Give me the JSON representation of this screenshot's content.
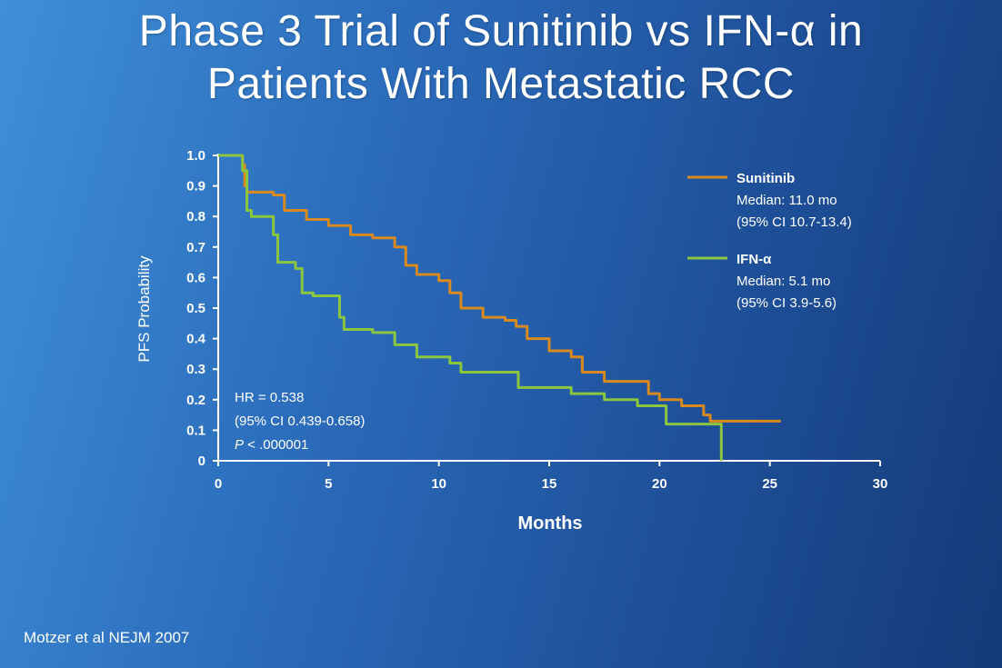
{
  "slide": {
    "title_line1": "Phase 3 Trial of Sunitinib vs IFN-α in",
    "title_line2": "Patients With Metastatic RCC",
    "footer": "Motzer et al NEJM 2007"
  },
  "colors": {
    "sunitinib": "#d98a1e",
    "ifn": "#8cc63f",
    "axis_label_blue": "#9fd0ff",
    "text": "#ffffff"
  },
  "chart_data": {
    "type": "line",
    "xlabel": "Months",
    "ylabel": "PFS Probability",
    "xlim": [
      0,
      30
    ],
    "ylim": [
      0,
      1.0
    ],
    "x_ticks": [
      0,
      5,
      10,
      15,
      20,
      25,
      30
    ],
    "y_ticks": [
      0,
      0.1,
      0.2,
      0.3,
      0.4,
      0.5,
      0.6,
      0.7,
      0.8,
      0.9,
      1.0
    ],
    "y_tick_labels": [
      "0",
      "0.1",
      "0.2",
      "0.3",
      "0.4",
      "0.5",
      "0.6",
      "0.7",
      "0.8",
      "0.9",
      "1.0"
    ],
    "grid": false,
    "legend_position": "top-right",
    "series": [
      {
        "name": "Sunitinib",
        "median": "Median: 11.0 mo",
        "ci": "(95% CI 10.7-13.4)",
        "points": [
          [
            0,
            1.0
          ],
          [
            1.0,
            1.0
          ],
          [
            1.1,
            0.97
          ],
          [
            1.2,
            0.9
          ],
          [
            1.3,
            0.88
          ],
          [
            2.5,
            0.87
          ],
          [
            3.0,
            0.82
          ],
          [
            4.0,
            0.79
          ],
          [
            5.0,
            0.77
          ],
          [
            6.0,
            0.74
          ],
          [
            7.0,
            0.73
          ],
          [
            8.0,
            0.7
          ],
          [
            8.5,
            0.64
          ],
          [
            9.0,
            0.61
          ],
          [
            10.0,
            0.59
          ],
          [
            10.5,
            0.55
          ],
          [
            11.0,
            0.5
          ],
          [
            12.0,
            0.47
          ],
          [
            13.0,
            0.46
          ],
          [
            13.5,
            0.44
          ],
          [
            14.0,
            0.4
          ],
          [
            15.0,
            0.36
          ],
          [
            16.0,
            0.34
          ],
          [
            16.5,
            0.29
          ],
          [
            17.5,
            0.26
          ],
          [
            19.5,
            0.22
          ],
          [
            20.0,
            0.2
          ],
          [
            21.0,
            0.18
          ],
          [
            22.0,
            0.15
          ],
          [
            22.3,
            0.13
          ],
          [
            25.5,
            0.13
          ]
        ]
      },
      {
        "name": "IFN-α",
        "median": "Median: 5.1 mo",
        "ci": "(95% CI 3.9-5.6)",
        "points": [
          [
            0,
            1.0
          ],
          [
            1.0,
            1.0
          ],
          [
            1.1,
            0.95
          ],
          [
            1.3,
            0.82
          ],
          [
            1.5,
            0.8
          ],
          [
            2.5,
            0.74
          ],
          [
            2.7,
            0.65
          ],
          [
            3.5,
            0.63
          ],
          [
            3.8,
            0.55
          ],
          [
            4.3,
            0.54
          ],
          [
            5.0,
            0.54
          ],
          [
            5.5,
            0.47
          ],
          [
            5.7,
            0.43
          ],
          [
            7.0,
            0.42
          ],
          [
            8.0,
            0.38
          ],
          [
            9.0,
            0.34
          ],
          [
            10.5,
            0.32
          ],
          [
            11.0,
            0.29
          ],
          [
            13.0,
            0.29
          ],
          [
            13.6,
            0.24
          ],
          [
            16.0,
            0.22
          ],
          [
            17.5,
            0.2
          ],
          [
            19.0,
            0.18
          ],
          [
            20.3,
            0.12
          ],
          [
            22.5,
            0.12
          ],
          [
            22.7,
            0.12
          ],
          [
            22.8,
            0.0
          ]
        ]
      }
    ],
    "annotation": {
      "hr": "HR = 0.538",
      "ci": "(95% CI 0.439-0.658)",
      "p_prefix": "P",
      "p_value": " < .000001"
    }
  }
}
